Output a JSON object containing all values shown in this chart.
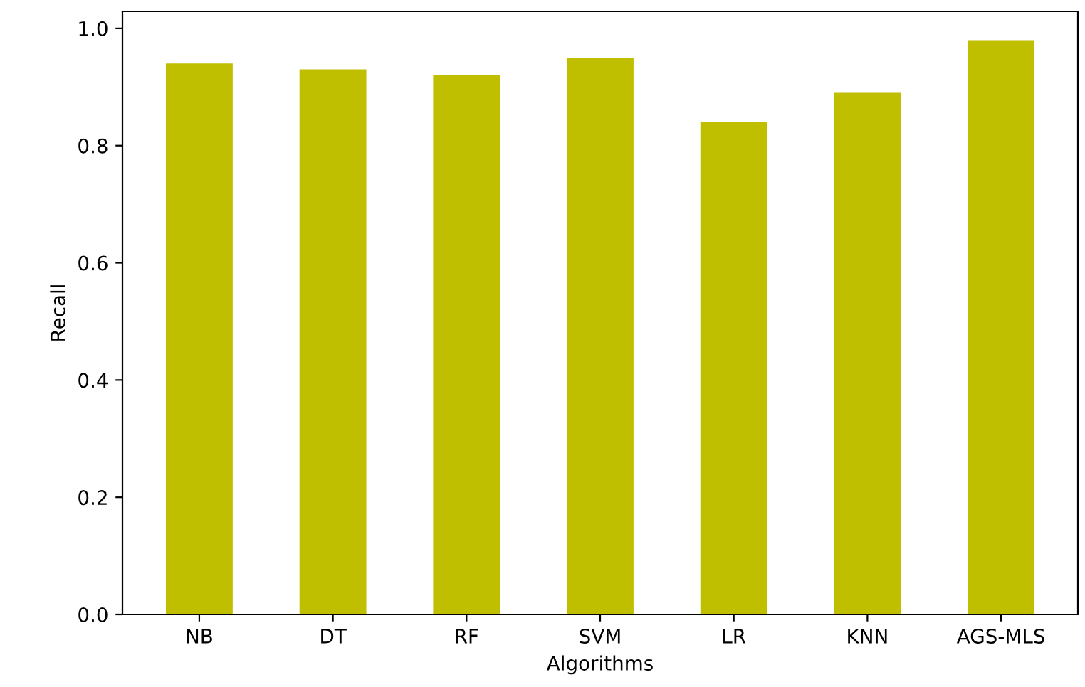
{
  "chart_data": {
    "type": "bar",
    "xlabel": "Algorithms",
    "ylabel": "Recall",
    "categories": [
      "NB",
      "DT",
      "RF",
      "SVM",
      "LR",
      "KNN",
      "AGS-MLS"
    ],
    "values": [
      0.94,
      0.93,
      0.92,
      0.95,
      0.84,
      0.89,
      0.98
    ],
    "color": "#bfbf00",
    "ylim": [
      0,
      1.029
    ],
    "yticks": [
      {
        "value": 0,
        "label": "0.0"
      },
      0.2,
      0.4,
      0.6,
      0.8,
      {
        "value": 1,
        "label": "1.0"
      }
    ],
    "grid": false
  }
}
